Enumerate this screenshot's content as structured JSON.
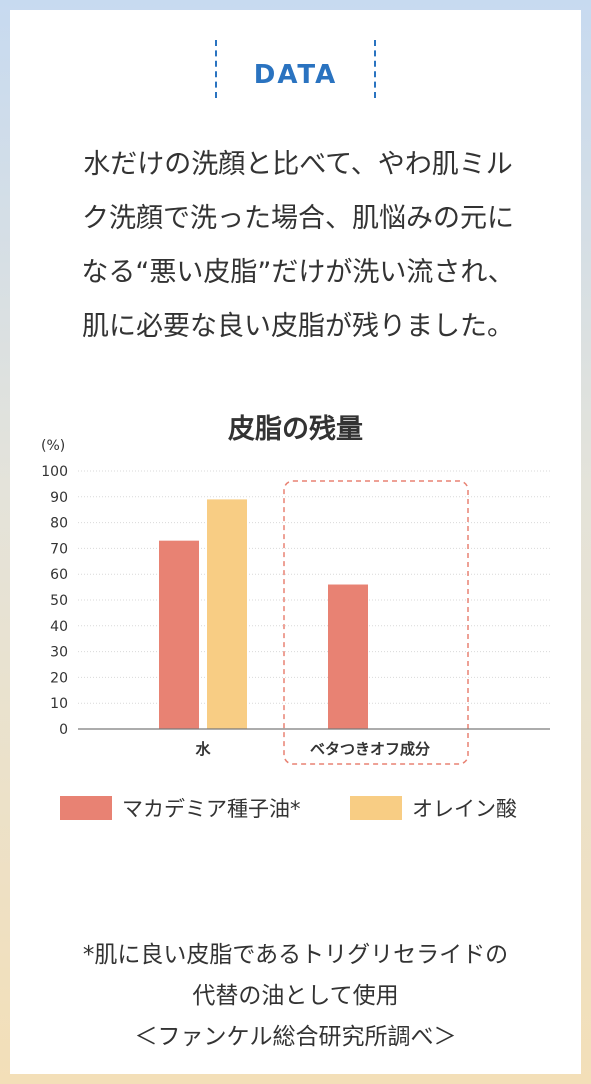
{
  "header": {
    "label": "DATA"
  },
  "intro_lines": [
    "水だけの洗顔と比べて、やわ肌ミル",
    "ク洗顔で洗った場合、肌悩みの元に",
    "なる“悪い皮脂”だけが洗い流され、",
    "肌に必要な良い皮脂が残りました。"
  ],
  "chart_data": {
    "type": "bar",
    "title": "皮脂の残量",
    "ylabel": "(%)",
    "xlabel": "",
    "ylim": [
      0,
      100
    ],
    "yticks": [
      "0",
      "10",
      "20",
      "30",
      "40",
      "50",
      "60",
      "70",
      "80",
      "90",
      "100"
    ],
    "categories": [
      "水",
      "ベタつきオフ成分"
    ],
    "series": [
      {
        "name": "マカデミア種子油*",
        "values": [
          73,
          56
        ],
        "color": "#e88273"
      },
      {
        "name": "オレイン酸",
        "values": [
          89,
          null
        ],
        "color": "#f8cd84"
      }
    ],
    "grid": true,
    "highlight_category": "ベタつきオフ成分",
    "highlight_color": "#e88273",
    "legend_position": "bottom"
  },
  "footnote_lines": [
    "*肌に良い皮脂であるトリグリセライドの",
    "代替の油として使用",
    "＜ファンケル総合研究所調べ＞"
  ],
  "colors": {
    "accent": "#2a73c0",
    "text": "#333333"
  }
}
